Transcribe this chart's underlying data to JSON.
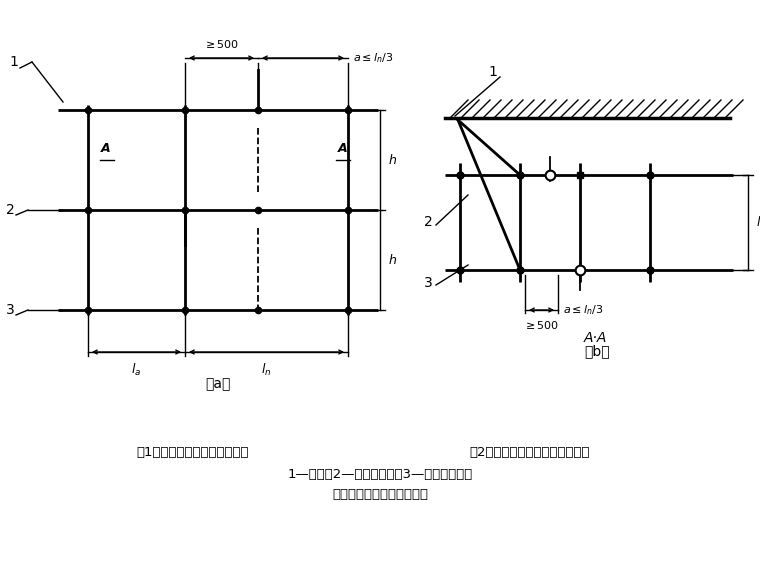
{
  "bg_color": "#ffffff",
  "lc": "#000000",
  "fig_width": 7.6,
  "fig_height": 5.7,
  "caption1": "（1）接头不在同步内（立面）",
  "caption2": "（2）接头不在同跨内（平面）。",
  "caption3": "1—立杆；2—纵向水平杆；3—横向水平杆。",
  "caption4": "纵向水平杆对接接头布置。",
  "label_a": "（a）",
  "label_b": "（b）",
  "label_AA": "A·A"
}
